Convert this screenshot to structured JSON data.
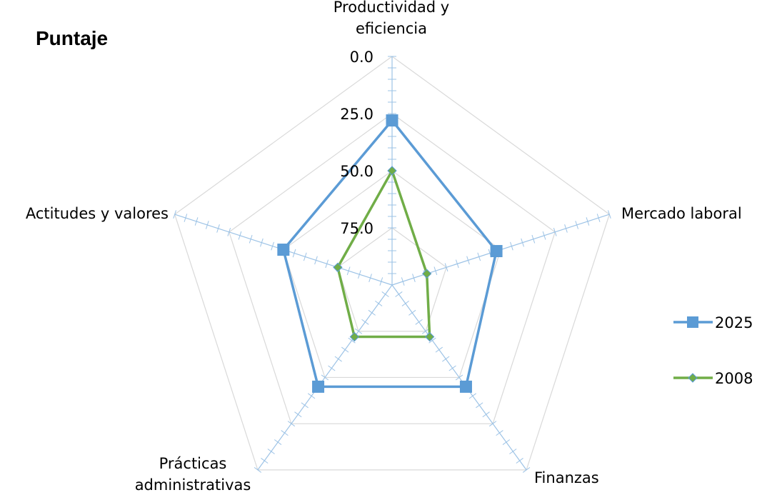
{
  "chart_data": {
    "type": "radar",
    "title": "Puntaje",
    "categories": [
      "Productividad y eficiencia",
      "Mercado laboral",
      "Finanzas",
      "Prácticas administrativas",
      "Actitudes y valores"
    ],
    "category_label_lines": [
      [
        "Productividad y",
        "eficiencia"
      ],
      [
        "Mercado laboral"
      ],
      [
        "Finanzas"
      ],
      [
        "Prácticas",
        "administrativas"
      ],
      [
        "Actitudes y valores"
      ]
    ],
    "radial_axis": {
      "min": 0,
      "max": 100,
      "reversed": true,
      "labeled_ticks": [
        "0.0",
        "25.0",
        "50.0",
        "75.0"
      ],
      "tick_values": [
        0,
        25,
        50,
        75
      ]
    },
    "series": [
      {
        "name": "2025",
        "values": [
          28,
          52,
          45,
          45,
          50
        ],
        "color": "#5b9bd5",
        "marker": "square"
      },
      {
        "name": "2008",
        "values": [
          50,
          84,
          72,
          72,
          75
        ],
        "color": "#70ad47",
        "marker": "diamond"
      }
    ],
    "legend_position": "right",
    "grid": true,
    "grid_color": "#d9d9d9",
    "axis_color": "#9dc3e6"
  }
}
